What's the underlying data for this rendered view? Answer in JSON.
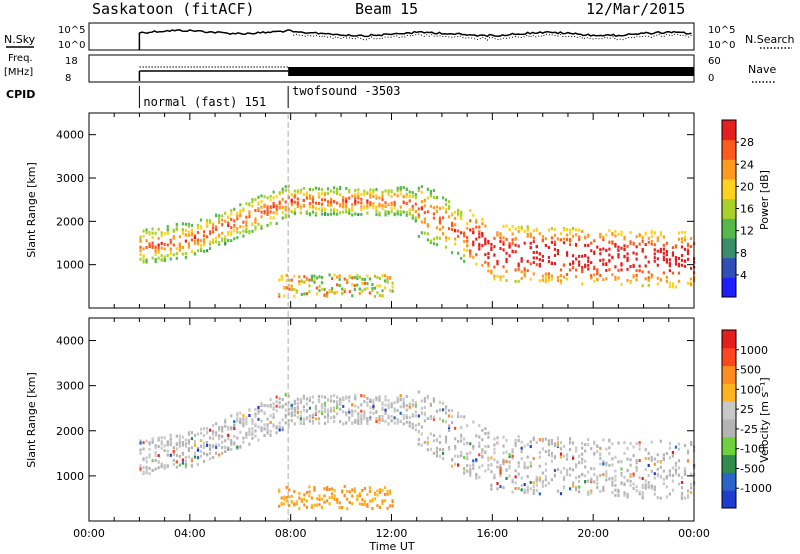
{
  "header": {
    "station": "Saskatoon (fitACF)",
    "beam": "Beam 15",
    "date": "12/Mar/2015"
  },
  "strip_labels": {
    "nsky": "N.Sky",
    "nsearch": "N.Search",
    "freq_line1": "Freq.",
    "freq_line2": "[MHz]",
    "nave": "Nave",
    "cpid": "CPID",
    "nsky_ticks": [
      "10^5",
      "10^0"
    ],
    "nsearch_ticks": [
      "10^5",
      "10^0"
    ],
    "freq_ticks": [
      "18",
      "8"
    ],
    "nave_ticks": [
      "60",
      "0"
    ]
  },
  "modes": [
    {
      "label": "normal (fast) 151",
      "start_hour": 2.0
    },
    {
      "label": "twofsound -3503",
      "start_hour": 7.9
    }
  ],
  "colors": {
    "power": [
      "#1e1eff",
      "#2f4fb8",
      "#3a8d6c",
      "#55b84a",
      "#a8d22a",
      "#ffd21e",
      "#ff9a1e",
      "#ff5a1e",
      "#e61e1e"
    ],
    "velocity": [
      "#1e3ccd",
      "#2a64c8",
      "#2f8c4a",
      "#6ed03c",
      "#b4b4b4",
      "#c8c8c8",
      "#ffb41e",
      "#ff8c1e",
      "#ff461e",
      "#e61e1e"
    ]
  },
  "chart_data": [
    {
      "type": "heatmap",
      "name": "power",
      "ylabel": "Slant Range [km]",
      "yticks": [
        "1000",
        "2000",
        "3000",
        "4000"
      ],
      "ylim": [
        0,
        4500
      ],
      "xlim": [
        0,
        24
      ],
      "colorbar_label": "Power [dB]",
      "colorbar_ticks": [
        "4",
        "8",
        "12",
        "16",
        "20",
        "24",
        "28"
      ]
    },
    {
      "type": "heatmap",
      "name": "velocity",
      "ylabel": "Slant Range [km]",
      "yticks": [
        "1000",
        "2000",
        "3000",
        "4000"
      ],
      "ylim": [
        0,
        4500
      ],
      "xlim": [
        0,
        24
      ],
      "xlabel": "Time UT",
      "xticks": [
        "00:00",
        "04:00",
        "08:00",
        "12:00",
        "16:00",
        "20:00",
        "00:00"
      ],
      "colorbar_label": "Velocity [m s⁻¹]",
      "colorbar_ticks": [
        "1000",
        "500",
        "100",
        "25",
        "-25",
        "-100",
        "-500",
        "-1000"
      ]
    }
  ]
}
